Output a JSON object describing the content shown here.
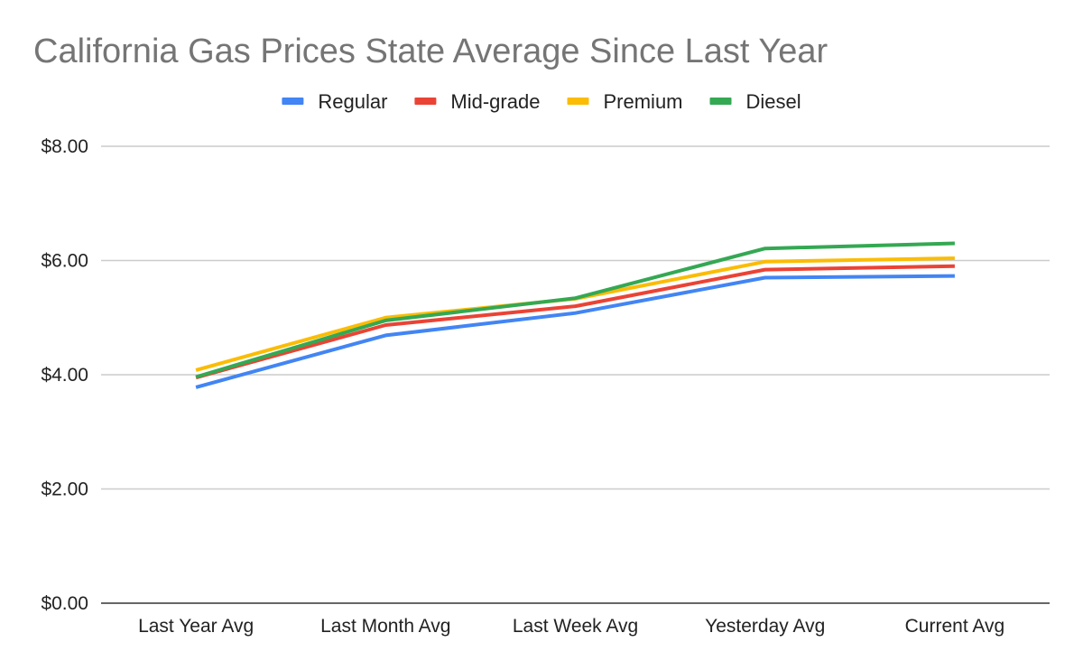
{
  "chart_data": {
    "type": "line",
    "title": "California Gas Prices State Average Since Last Year",
    "xlabel": "",
    "ylabel": "",
    "ylim": [
      0,
      8
    ],
    "yticks": [
      0,
      2,
      4,
      6,
      8
    ],
    "ytick_labels": [
      "$0.00",
      "$2.00",
      "$4.00",
      "$6.00",
      "$8.00"
    ],
    "grid": true,
    "legend_position": "top",
    "categories": [
      "Last Year Avg",
      "Last Month Avg",
      "Last Week Avg",
      "Yesterday Avg",
      "Current Avg"
    ],
    "series": [
      {
        "name": "Regular",
        "color": "#4285F4",
        "values": [
          3.78,
          4.69,
          5.08,
          5.7,
          5.73
        ]
      },
      {
        "name": "Mid-grade",
        "color": "#EA4335",
        "values": [
          3.95,
          4.87,
          5.2,
          5.84,
          5.9
        ]
      },
      {
        "name": "Premium",
        "color": "#FBBC04",
        "values": [
          4.08,
          5.0,
          5.33,
          5.98,
          6.04
        ]
      },
      {
        "name": "Diesel",
        "color": "#34A853",
        "values": [
          3.96,
          4.95,
          5.34,
          6.21,
          6.3
        ]
      }
    ]
  }
}
